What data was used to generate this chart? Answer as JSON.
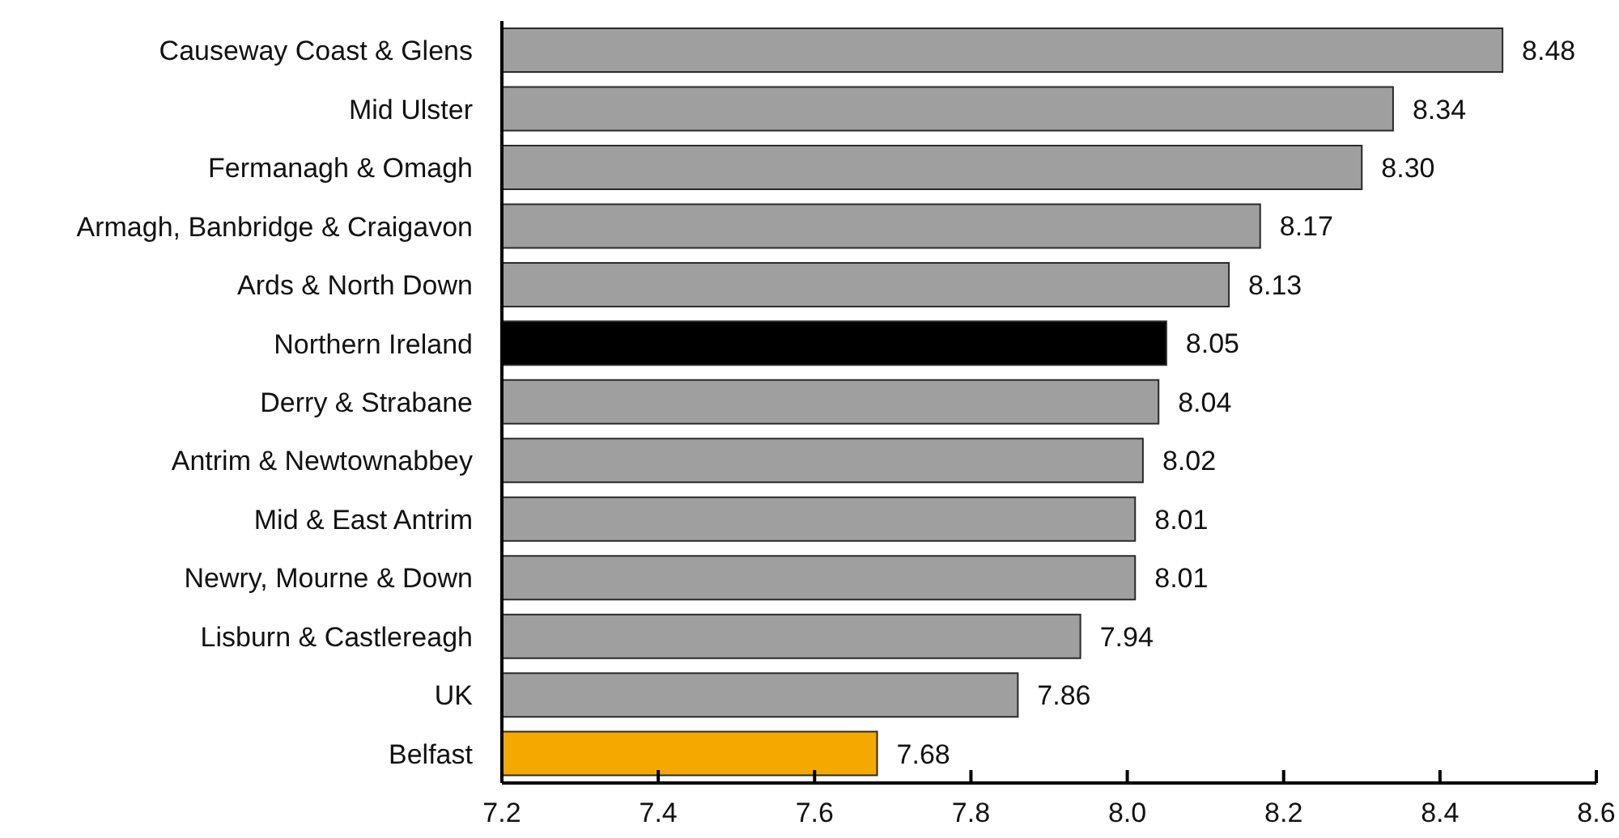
{
  "chart_data": {
    "type": "bar",
    "orientation": "horizontal",
    "categories": [
      "Causeway Coast & Glens",
      "Mid Ulster",
      "Fermanagh & Omagh",
      "Armagh, Banbridge & Craigavon",
      "Ards & North Down",
      "Northern Ireland",
      "Derry & Strabane",
      "Antrim & Newtownabbey",
      "Mid & East Antrim",
      "Newry, Mourne & Down",
      "Lisburn & Castlereagh",
      "UK",
      "Belfast"
    ],
    "series": [
      {
        "values": [
          8.48,
          8.34,
          8.3,
          8.17,
          8.13,
          8.05,
          8.04,
          8.02,
          8.01,
          8.01,
          7.94,
          7.86,
          7.68
        ],
        "colors": [
          "#9f9f9f",
          "#9f9f9f",
          "#9f9f9f",
          "#9f9f9f",
          "#9f9f9f",
          "#000000",
          "#9f9f9f",
          "#9f9f9f",
          "#9f9f9f",
          "#9f9f9f",
          "#9f9f9f",
          "#9f9f9f",
          "#f5a800"
        ],
        "value_labels": [
          "8.48",
          "8.34",
          "8.30",
          "8.17",
          "8.13",
          "8.05",
          "8.04",
          "8.02",
          "8.01",
          "8.01",
          "7.94",
          "7.86",
          "7.68"
        ]
      }
    ],
    "xlim": [
      7.2,
      8.6
    ],
    "xticks": [
      7.2,
      7.4,
      7.6,
      7.8,
      {
        "value": 8,
        "label": "8.0"
      },
      8.2,
      8.4,
      8.6
    ]
  }
}
